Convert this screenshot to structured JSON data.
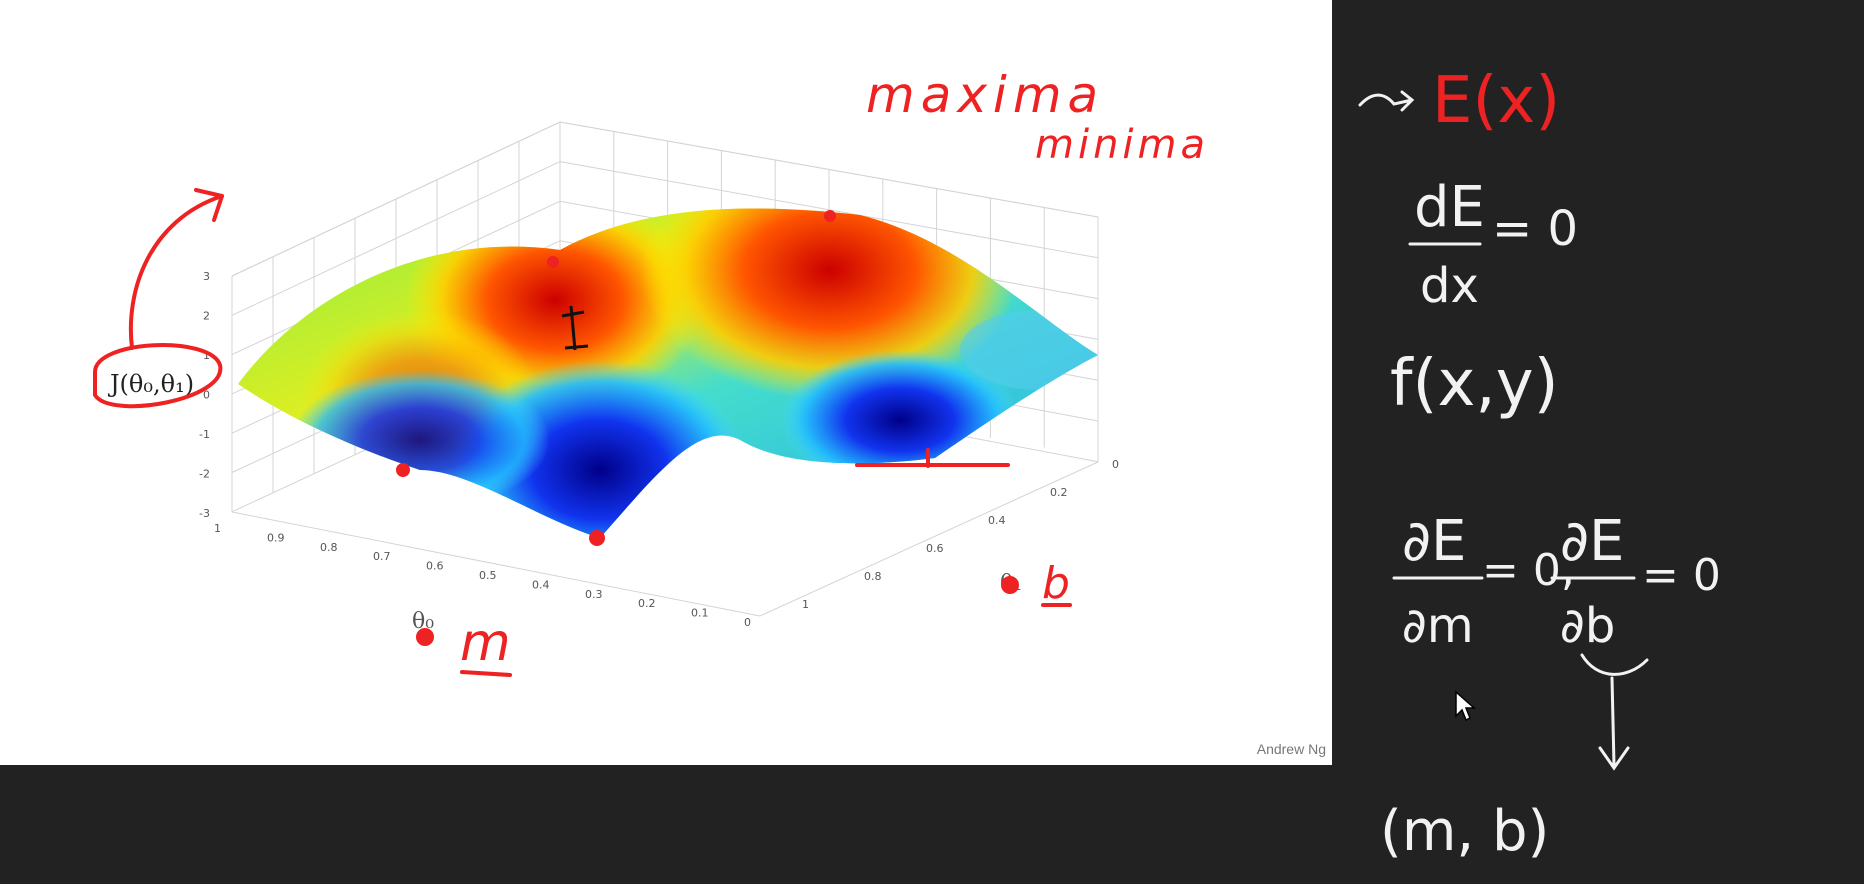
{
  "slide": {
    "credit": "Andrew Ng",
    "cost_label": "J(θ₀,θ₁)",
    "z_ticks": [
      "3",
      "2",
      "1",
      "0",
      "-1",
      "-2",
      "-3"
    ],
    "x_ticks": [
      "1",
      "0.9",
      "0.8",
      "0.7",
      "0.6",
      "0.5",
      "0.4",
      "0.3",
      "0.2",
      "0.1",
      "0"
    ],
    "y_ticks": [
      "0",
      "0.2",
      "0.4",
      "0.6",
      "0.8",
      "1"
    ],
    "theta0_axis": "θ₀",
    "theta1_axis": "θ₁"
  },
  "annotations": {
    "maxima": "maxima",
    "minima": "minima",
    "m_label": "m",
    "b_label": "b",
    "color": "#ee2222"
  },
  "blackboard": {
    "e_of_x": "E(x)",
    "derivative_num": "dE",
    "derivative_den": "dx",
    "equals_zero": "= 0",
    "function": "f(x,y)",
    "partial_m_num": "∂E",
    "partial_m_den": "∂m",
    "partial_m_eq": "= 0,",
    "partial_b_num": "∂E",
    "partial_b_den": "∂b",
    "partial_b_eq": "= 0",
    "result": "(m, b)",
    "chalk_color": "#f2f2f2",
    "highlight_color": "#ee2222"
  }
}
